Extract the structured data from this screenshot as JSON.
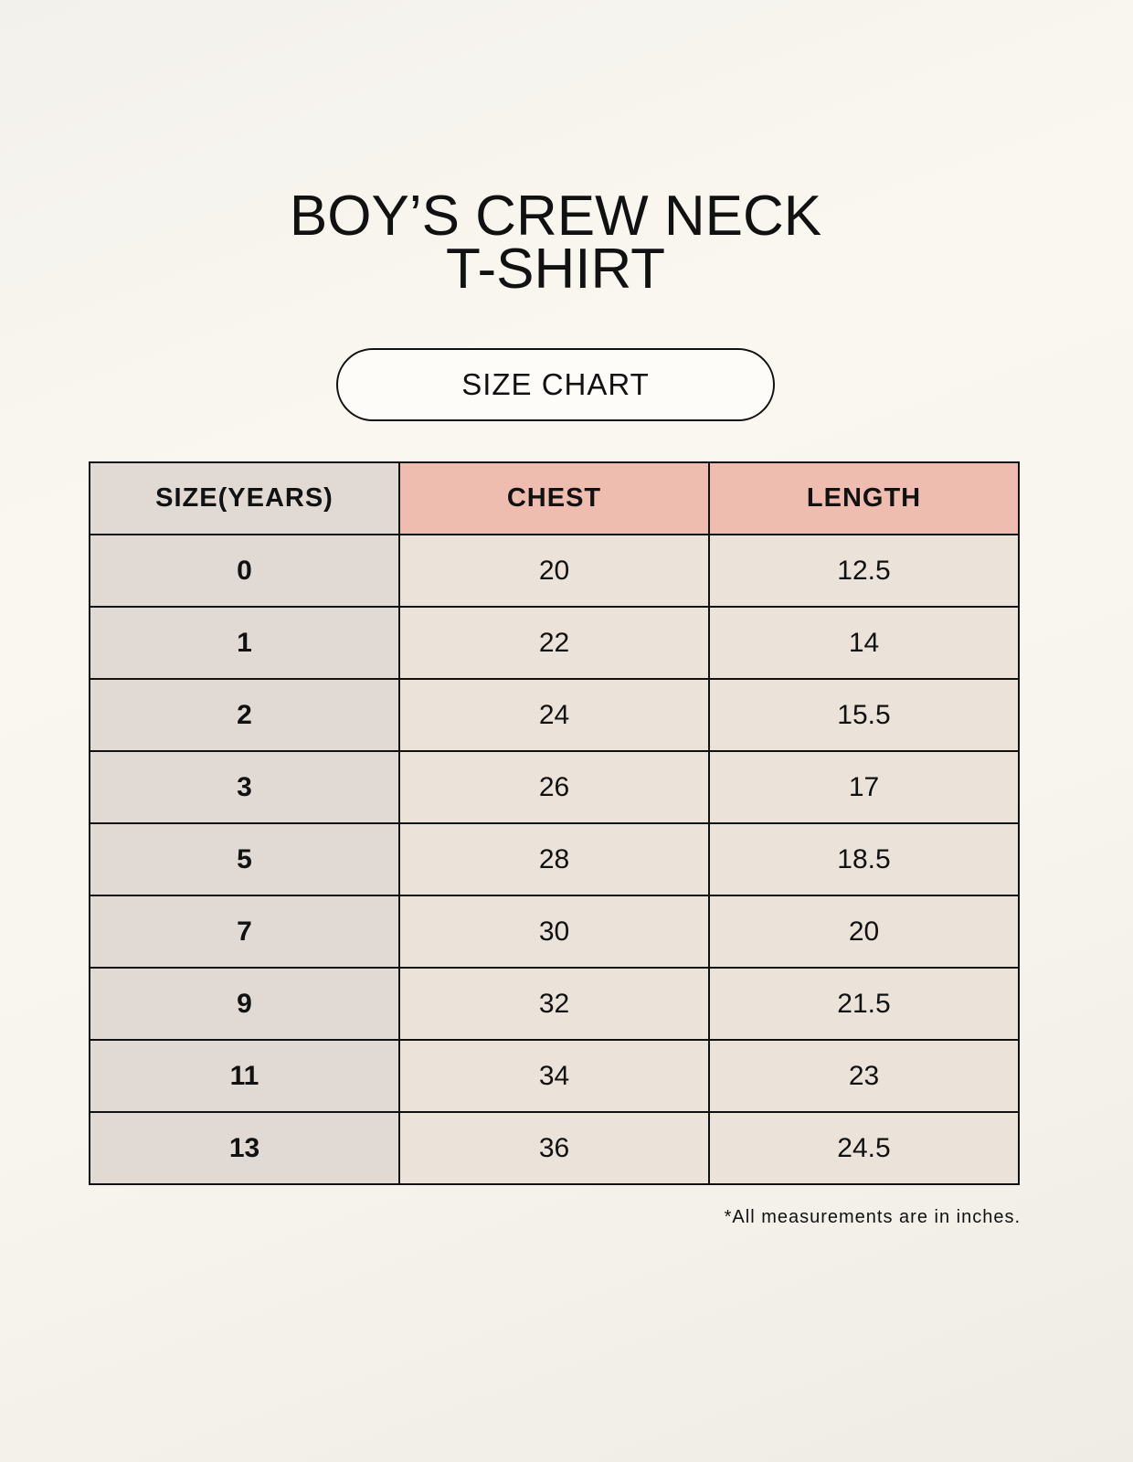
{
  "title_lines": [
    "BOY’S CREW NECK",
    "T-SHIRT"
  ],
  "subtitle": "SIZE CHART",
  "table": {
    "headers": [
      "SIZE(YEARS)",
      "CHEST",
      "LENGTH"
    ],
    "rows": [
      [
        "0",
        "20",
        "12.5"
      ],
      [
        "1",
        "22",
        "14"
      ],
      [
        "2",
        "24",
        "15.5"
      ],
      [
        "3",
        "26",
        "17"
      ],
      [
        "5",
        "28",
        "18.5"
      ],
      [
        "7",
        "30",
        "20"
      ],
      [
        "9",
        "32",
        "21.5"
      ],
      [
        "11",
        "34",
        "23"
      ],
      [
        "13",
        "36",
        "24.5"
      ]
    ]
  },
  "note": "*All measurements are in inches.",
  "colors": {
    "size_column": "#e1d9d4",
    "header_accent": "#efbdb0",
    "cell": "#ebe3d9"
  }
}
